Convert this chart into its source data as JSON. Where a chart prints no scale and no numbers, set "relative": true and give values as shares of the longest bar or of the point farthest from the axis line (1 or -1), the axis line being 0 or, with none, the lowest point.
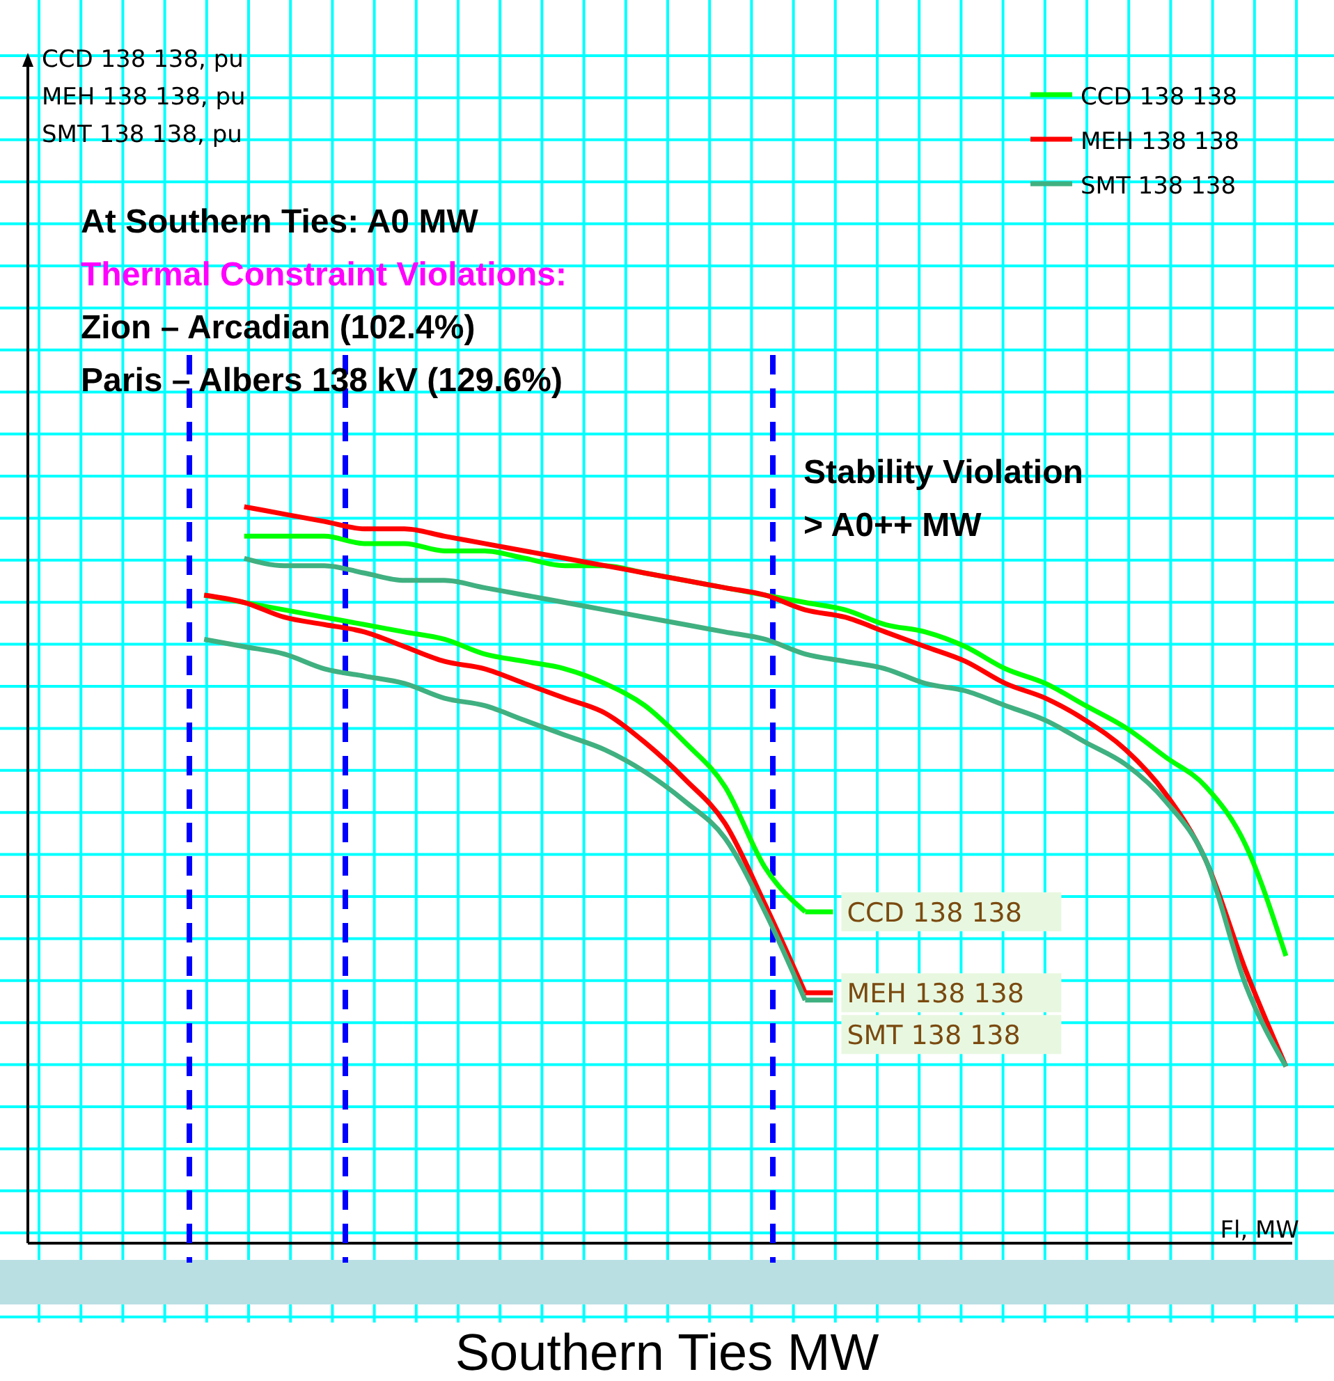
{
  "chart_data": {
    "type": "line",
    "relative": true,
    "grid": true,
    "legend": "top right",
    "marker": "none",
    "line_style": "solid",
    "xlabel": "Fl, MW",
    "categories": [
      null,
      null,
      null,
      null,
      null,
      null,
      null,
      null,
      null,
      null,
      null,
      null,
      null,
      null,
      null,
      null,
      null,
      null,
      null,
      null,
      null,
      null,
      null,
      null,
      null,
      null,
      null,
      null
    ],
    "series": [
      {
        "name": "CCD 138  138",
        "color": "#00ff00",
        "values": [
          null,
          0.96,
          0.96,
          0.96,
          0.95,
          0.95,
          0.94,
          0.94,
          0.93,
          0.92,
          0.92,
          0.91,
          0.9,
          0.89,
          0.88,
          0.87,
          0.86,
          0.84,
          0.83,
          0.81,
          0.78,
          0.76,
          0.73,
          0.7,
          0.66,
          0.62,
          0.54,
          0.39
        ]
      },
      {
        "name": "MEH 138  138",
        "color": "#ff0000",
        "values": [
          null,
          1.0,
          0.99,
          0.98,
          0.97,
          0.97,
          0.96,
          0.95,
          0.94,
          0.93,
          0.92,
          0.91,
          0.9,
          0.89,
          0.88,
          0.86,
          0.85,
          0.83,
          0.81,
          0.79,
          0.76,
          0.74,
          0.71,
          0.67,
          0.61,
          0.52,
          0.37,
          0.24
        ]
      },
      {
        "name": "SMT 138  138",
        "color": "#40b080",
        "values": [
          null,
          0.93,
          0.92,
          0.92,
          0.91,
          0.9,
          0.9,
          0.89,
          0.88,
          0.87,
          0.86,
          0.85,
          0.84,
          0.83,
          0.82,
          0.8,
          0.79,
          0.78,
          0.76,
          0.75,
          0.73,
          0.71,
          0.68,
          0.65,
          0.6,
          0.52,
          0.35,
          0.24
        ]
      },
      {
        "name": "CCD 138  138",
        "color": "#00ff00",
        "values": [
          0.88,
          0.87,
          0.86,
          0.85,
          0.84,
          0.83,
          0.82,
          0.8,
          0.79,
          0.78,
          0.76,
          0.73,
          0.68,
          0.62,
          0.51,
          0.45,
          null,
          null,
          null,
          null,
          null,
          null,
          null,
          null,
          null,
          null,
          null,
          null
        ]
      },
      {
        "name": "MEH 138  138",
        "color": "#ff0000",
        "values": [
          0.88,
          0.87,
          0.85,
          0.84,
          0.83,
          0.81,
          0.79,
          0.78,
          0.76,
          0.74,
          0.72,
          0.68,
          0.63,
          0.57,
          0.46,
          0.34,
          null,
          null,
          null,
          null,
          null,
          null,
          null,
          null,
          null,
          null,
          null,
          null
        ]
      },
      {
        "name": "SMT 138  138",
        "color": "#40b080",
        "values": [
          0.82,
          0.81,
          0.8,
          0.78,
          0.77,
          0.76,
          0.74,
          0.73,
          0.71,
          0.69,
          0.67,
          0.64,
          0.6,
          0.55,
          0.45,
          0.33,
          null,
          null,
          null,
          null,
          null,
          null,
          null,
          null,
          null,
          null,
          null,
          null
        ]
      }
    ],
    "annotations": [
      "CCD 138  138, pu\nMEH 138  138, pu\nSMT 138  138, pu",
      "At Southern Ties: A0 MW",
      "Thermal Constraint Violations:",
      "Zion – Arcadian (102.4%)",
      "Paris – Albers 138 kV (129.6%)",
      "Stability Violation\n> A0++ MW",
      "Southern Ties MW"
    ]
  }
}
